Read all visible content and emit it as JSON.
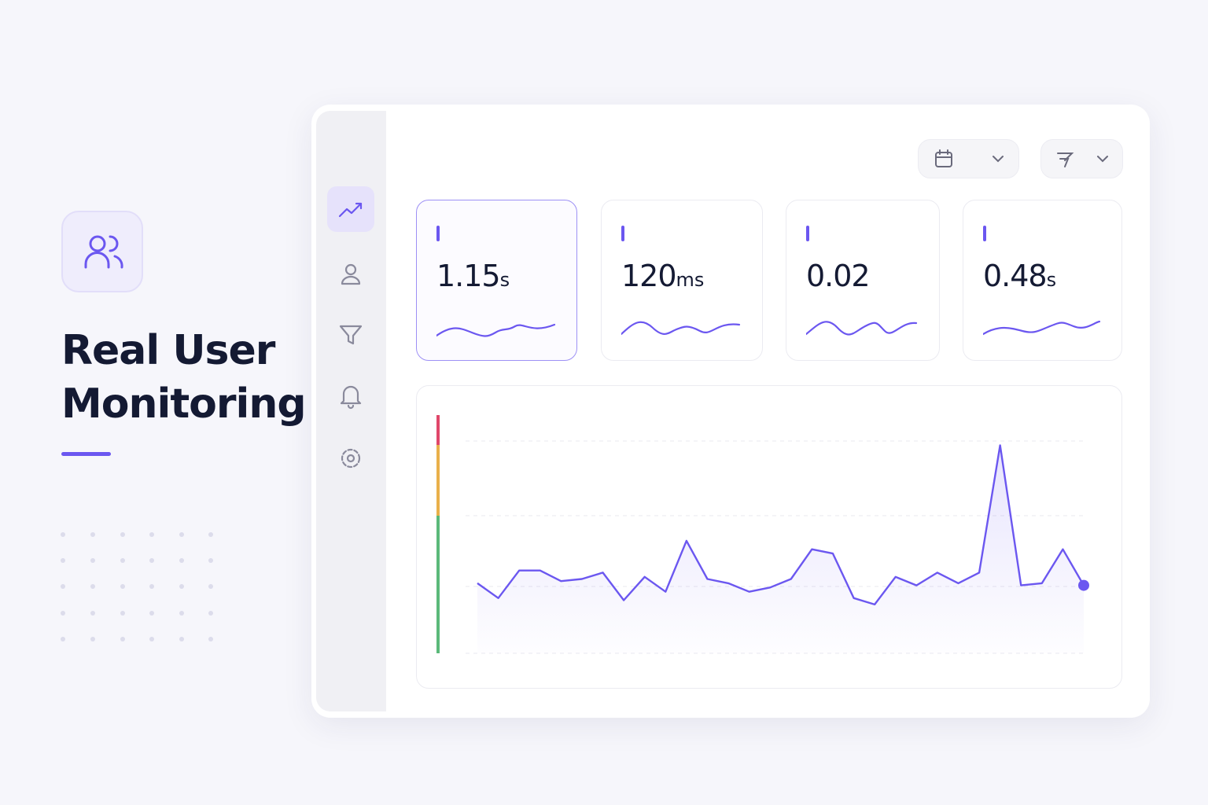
{
  "hero": {
    "title_line1": "Real User",
    "title_line2": "Monitoring"
  },
  "metrics": [
    {
      "value": 1.15,
      "unit": "s"
    },
    {
      "value": 120,
      "unit": "ms"
    },
    {
      "value": 0.02
    },
    {
      "value": 0.48,
      "unit": "s"
    }
  ],
  "chart_data": {
    "type": "line",
    "color": "#6b57f0",
    "ylim": [
      0,
      100
    ],
    "values": [
      33,
      26,
      39,
      39,
      34,
      35,
      38,
      25,
      36,
      29,
      53,
      35,
      33,
      29,
      31,
      35,
      49,
      47,
      26,
      23,
      36,
      32,
      38,
      33,
      38,
      98,
      32,
      33,
      49,
      32
    ]
  }
}
